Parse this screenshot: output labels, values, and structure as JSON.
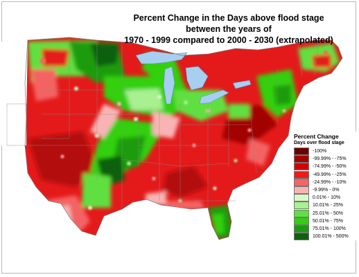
{
  "title": {
    "line1": "Percent Change in the Days above flood stage",
    "line2": "between the years of",
    "line3": "1970 - 1999 compared to 2000 - 2030 (extrapolated)"
  },
  "legend": {
    "title": "Percent Change",
    "subtitle": "Days over flood stage",
    "items": [
      {
        "label": "-100%",
        "color": "#6b0000"
      },
      {
        "label": "-99.99% - -75%",
        "color": "#a30000"
      },
      {
        "label": "-74.99% - -50%",
        "color": "#d40000"
      },
      {
        "label": "-49.99% - -25%",
        "color": "#f01818"
      },
      {
        "label": "-24.99% - -10%",
        "color": "#f46464"
      },
      {
        "label": "-9.99% - 0%",
        "color": "#f8b4b4"
      },
      {
        "label": "0.01% - 10%",
        "color": "#d8f8c8"
      },
      {
        "label": "10.01% - 25%",
        "color": "#a8f090"
      },
      {
        "label": "25.01% - 50%",
        "color": "#60e040"
      },
      {
        "label": "50.01% - 75%",
        "color": "#30d010"
      },
      {
        "label": "75.01% - 100%",
        "color": "#1c9c0c"
      },
      {
        "label": "100.01% - 500%",
        "color": "#106010"
      }
    ]
  },
  "colors": {
    "water": "#a6cff0",
    "outside": "#ffffff",
    "state_borders": "#8a8a8a"
  }
}
